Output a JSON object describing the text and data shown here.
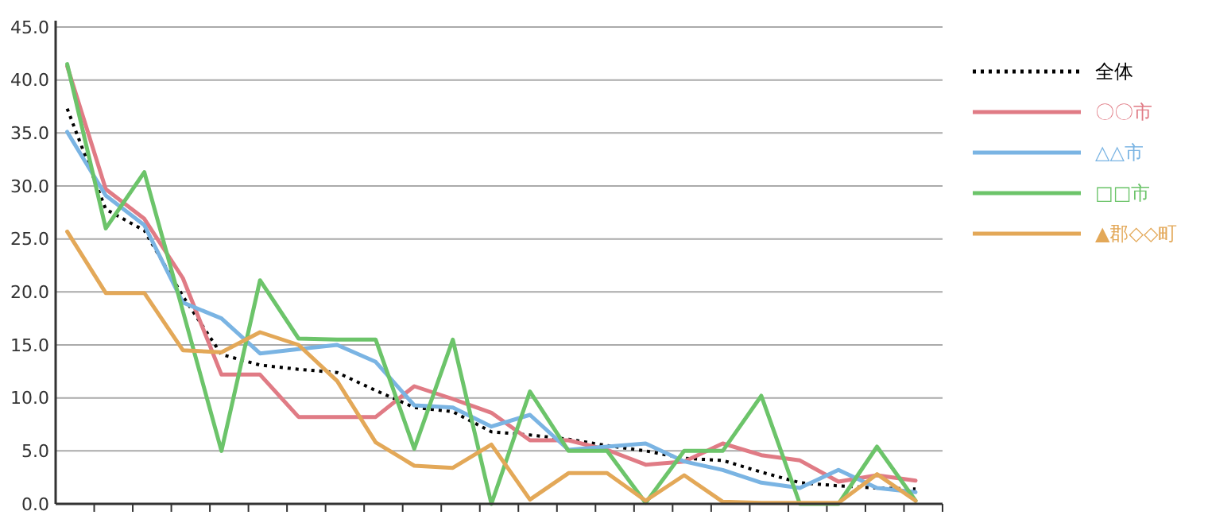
{
  "chart_data": {
    "type": "line",
    "categories": [
      null,
      null,
      null,
      null,
      null,
      null,
      null,
      null,
      null,
      null,
      null,
      null,
      null,
      null,
      null,
      null,
      null,
      null,
      null,
      null,
      null,
      null,
      null
    ],
    "series": [
      {
        "name": "全体",
        "color": "#000000",
        "line_style": "dotted",
        "values": [
          37.3,
          27.8,
          25.8,
          19.6,
          14.1,
          13.1,
          12.7,
          12.4,
          10.7,
          9.1,
          8.7,
          6.8,
          6.5,
          6.1,
          5.5,
          5.0,
          4.3,
          4.1,
          3.0,
          2.0,
          1.7,
          1.5,
          1.4
        ]
      },
      {
        "name": "〇〇市",
        "color": "#e07b85",
        "values": [
          41.3,
          29.7,
          26.9,
          21.3,
          12.2,
          12.2,
          8.2,
          8.2,
          8.2,
          11.1,
          9.9,
          8.6,
          6.0,
          6.0,
          5.1,
          3.7,
          4.0,
          5.7,
          4.6,
          4.1,
          2.1,
          2.7,
          2.2
        ]
      },
      {
        "name": "△△市",
        "color": "#7ab4e3",
        "values": [
          35.1,
          29.1,
          26.3,
          19.0,
          17.5,
          14.2,
          14.6,
          15.0,
          13.4,
          9.3,
          9.1,
          7.3,
          8.4,
          5.1,
          5.4,
          5.7,
          4.0,
          3.2,
          2.0,
          1.5,
          3.2,
          1.5,
          1.1
        ]
      },
      {
        "name": "□□市",
        "color": "#6cc46a",
        "values": [
          41.5,
          26.0,
          31.3,
          18.2,
          5.0,
          21.1,
          15.6,
          15.5,
          15.5,
          5.2,
          15.5,
          0.0,
          10.6,
          5.0,
          5.0,
          0.1,
          5.0,
          5.0,
          10.2,
          0.0,
          0.0,
          5.4,
          0.3
        ]
      },
      {
        "name": "▲郡◇◇町",
        "color": "#e3a858",
        "values": [
          25.7,
          19.9,
          19.9,
          14.5,
          14.3,
          16.2,
          15.0,
          11.6,
          5.8,
          3.6,
          3.4,
          5.6,
          0.4,
          2.9,
          2.9,
          0.3,
          2.7,
          0.2,
          0.1,
          0.1,
          0.1,
          2.8,
          0.3
        ]
      }
    ],
    "ylim": [
      0,
      45
    ],
    "yticks": [
      {
        "value": 0,
        "label": "0.0"
      },
      {
        "value": 5,
        "label": "5.0"
      },
      {
        "value": 10,
        "label": "10.0"
      },
      {
        "value": 15,
        "label": "15.0"
      },
      {
        "value": 20,
        "label": "20.0"
      },
      {
        "value": 25,
        "label": "25.0"
      },
      {
        "value": 30,
        "label": "30.0"
      },
      {
        "value": 35,
        "label": "35.0"
      },
      {
        "value": 40,
        "label": "40.0"
      },
      {
        "value": 45,
        "label": "45.0"
      }
    ],
    "grid": "y",
    "legend": "right"
  }
}
